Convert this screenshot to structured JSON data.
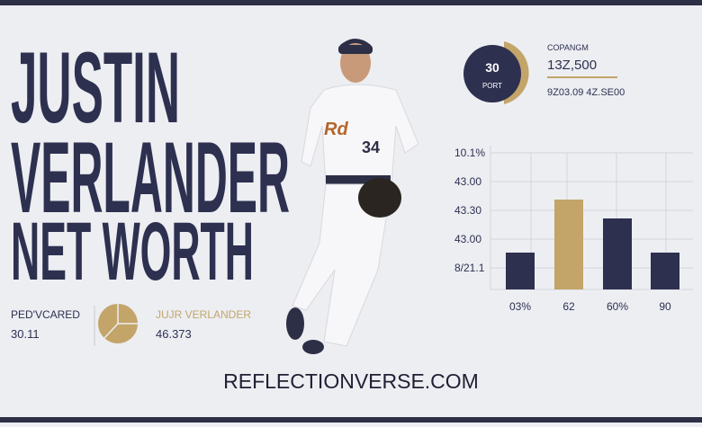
{
  "title_lines": [
    "JUSTIN",
    "VERLANDER",
    "NET WORTH"
  ],
  "donut": {
    "value": "30",
    "label": "PORT"
  },
  "stats": {
    "heading": "COPANGM",
    "value": "13Z,500",
    "sub": "9Z03.09 4Z.SE00"
  },
  "bar_chart": {
    "y_labels": [
      "10.1%",
      "43.00",
      "43.30",
      "43.00",
      "8/21.1"
    ],
    "x_labels": [
      "03%",
      "62",
      "60%",
      "90"
    ]
  },
  "bottom_left": {
    "label": "PED'VCARED",
    "value": "30.11"
  },
  "bottom_mid": {
    "label": "JUJR VERLANDER",
    "value": "46.373"
  },
  "footer": "REFLECTIONVERSE.COM"
}
